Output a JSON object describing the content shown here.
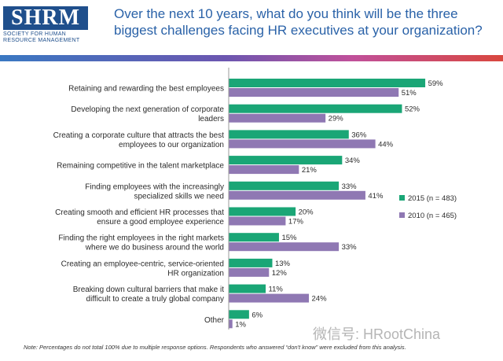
{
  "logo": {
    "text": "SHRM",
    "subtitle_line1": "SOCIETY FOR HUMAN",
    "subtitle_line2": "RESOURCE MANAGEMENT"
  },
  "title": "Over the next 10 years, what do you think will be the three biggest challenges facing HR executives at your organization?",
  "note": "Note: Percentages do not total 100% due to multiple response options. Respondents who answered “don't know” were excluded from this analysis.",
  "watermark": "微信号: HRootChina",
  "colors": {
    "series_2015": "#1aa676",
    "series_2010": "#8f78b3",
    "title": "#2a62a8",
    "logo": "#1f4f8c"
  },
  "chart_data": {
    "type": "bar",
    "orientation": "horizontal",
    "categories": [
      [
        "Retaining and rewarding the best employees"
      ],
      [
        "Developing the next generation of corporate",
        "leaders"
      ],
      [
        "Creating a corporate culture that attracts the best",
        "employees to our organization"
      ],
      [
        "Remaining competitive in the talent marketplace"
      ],
      [
        "Finding employees with the increasingly",
        "specialized skills we need"
      ],
      [
        "Creating smooth and efficient HR processes that",
        "ensure a good employee experience"
      ],
      [
        "Finding the right employees in the right markets",
        "where we do business around the world"
      ],
      [
        "Creating an employee-centric, service-oriented",
        "HR organization"
      ],
      [
        "Breaking down cultural barriers that make it",
        "difficult to create a truly global company"
      ],
      [
        "Other"
      ]
    ],
    "series": [
      {
        "name": "2015 (n = 483)",
        "values": [
          59,
          52,
          36,
          34,
          33,
          20,
          15,
          13,
          11,
          6
        ]
      },
      {
        "name": "2010 (n = 465)",
        "values": [
          51,
          29,
          44,
          21,
          41,
          17,
          33,
          12,
          24,
          1
        ]
      }
    ],
    "value_suffix": "%",
    "xlim": [
      0,
      100
    ],
    "legend_position": "right",
    "grid": false
  }
}
